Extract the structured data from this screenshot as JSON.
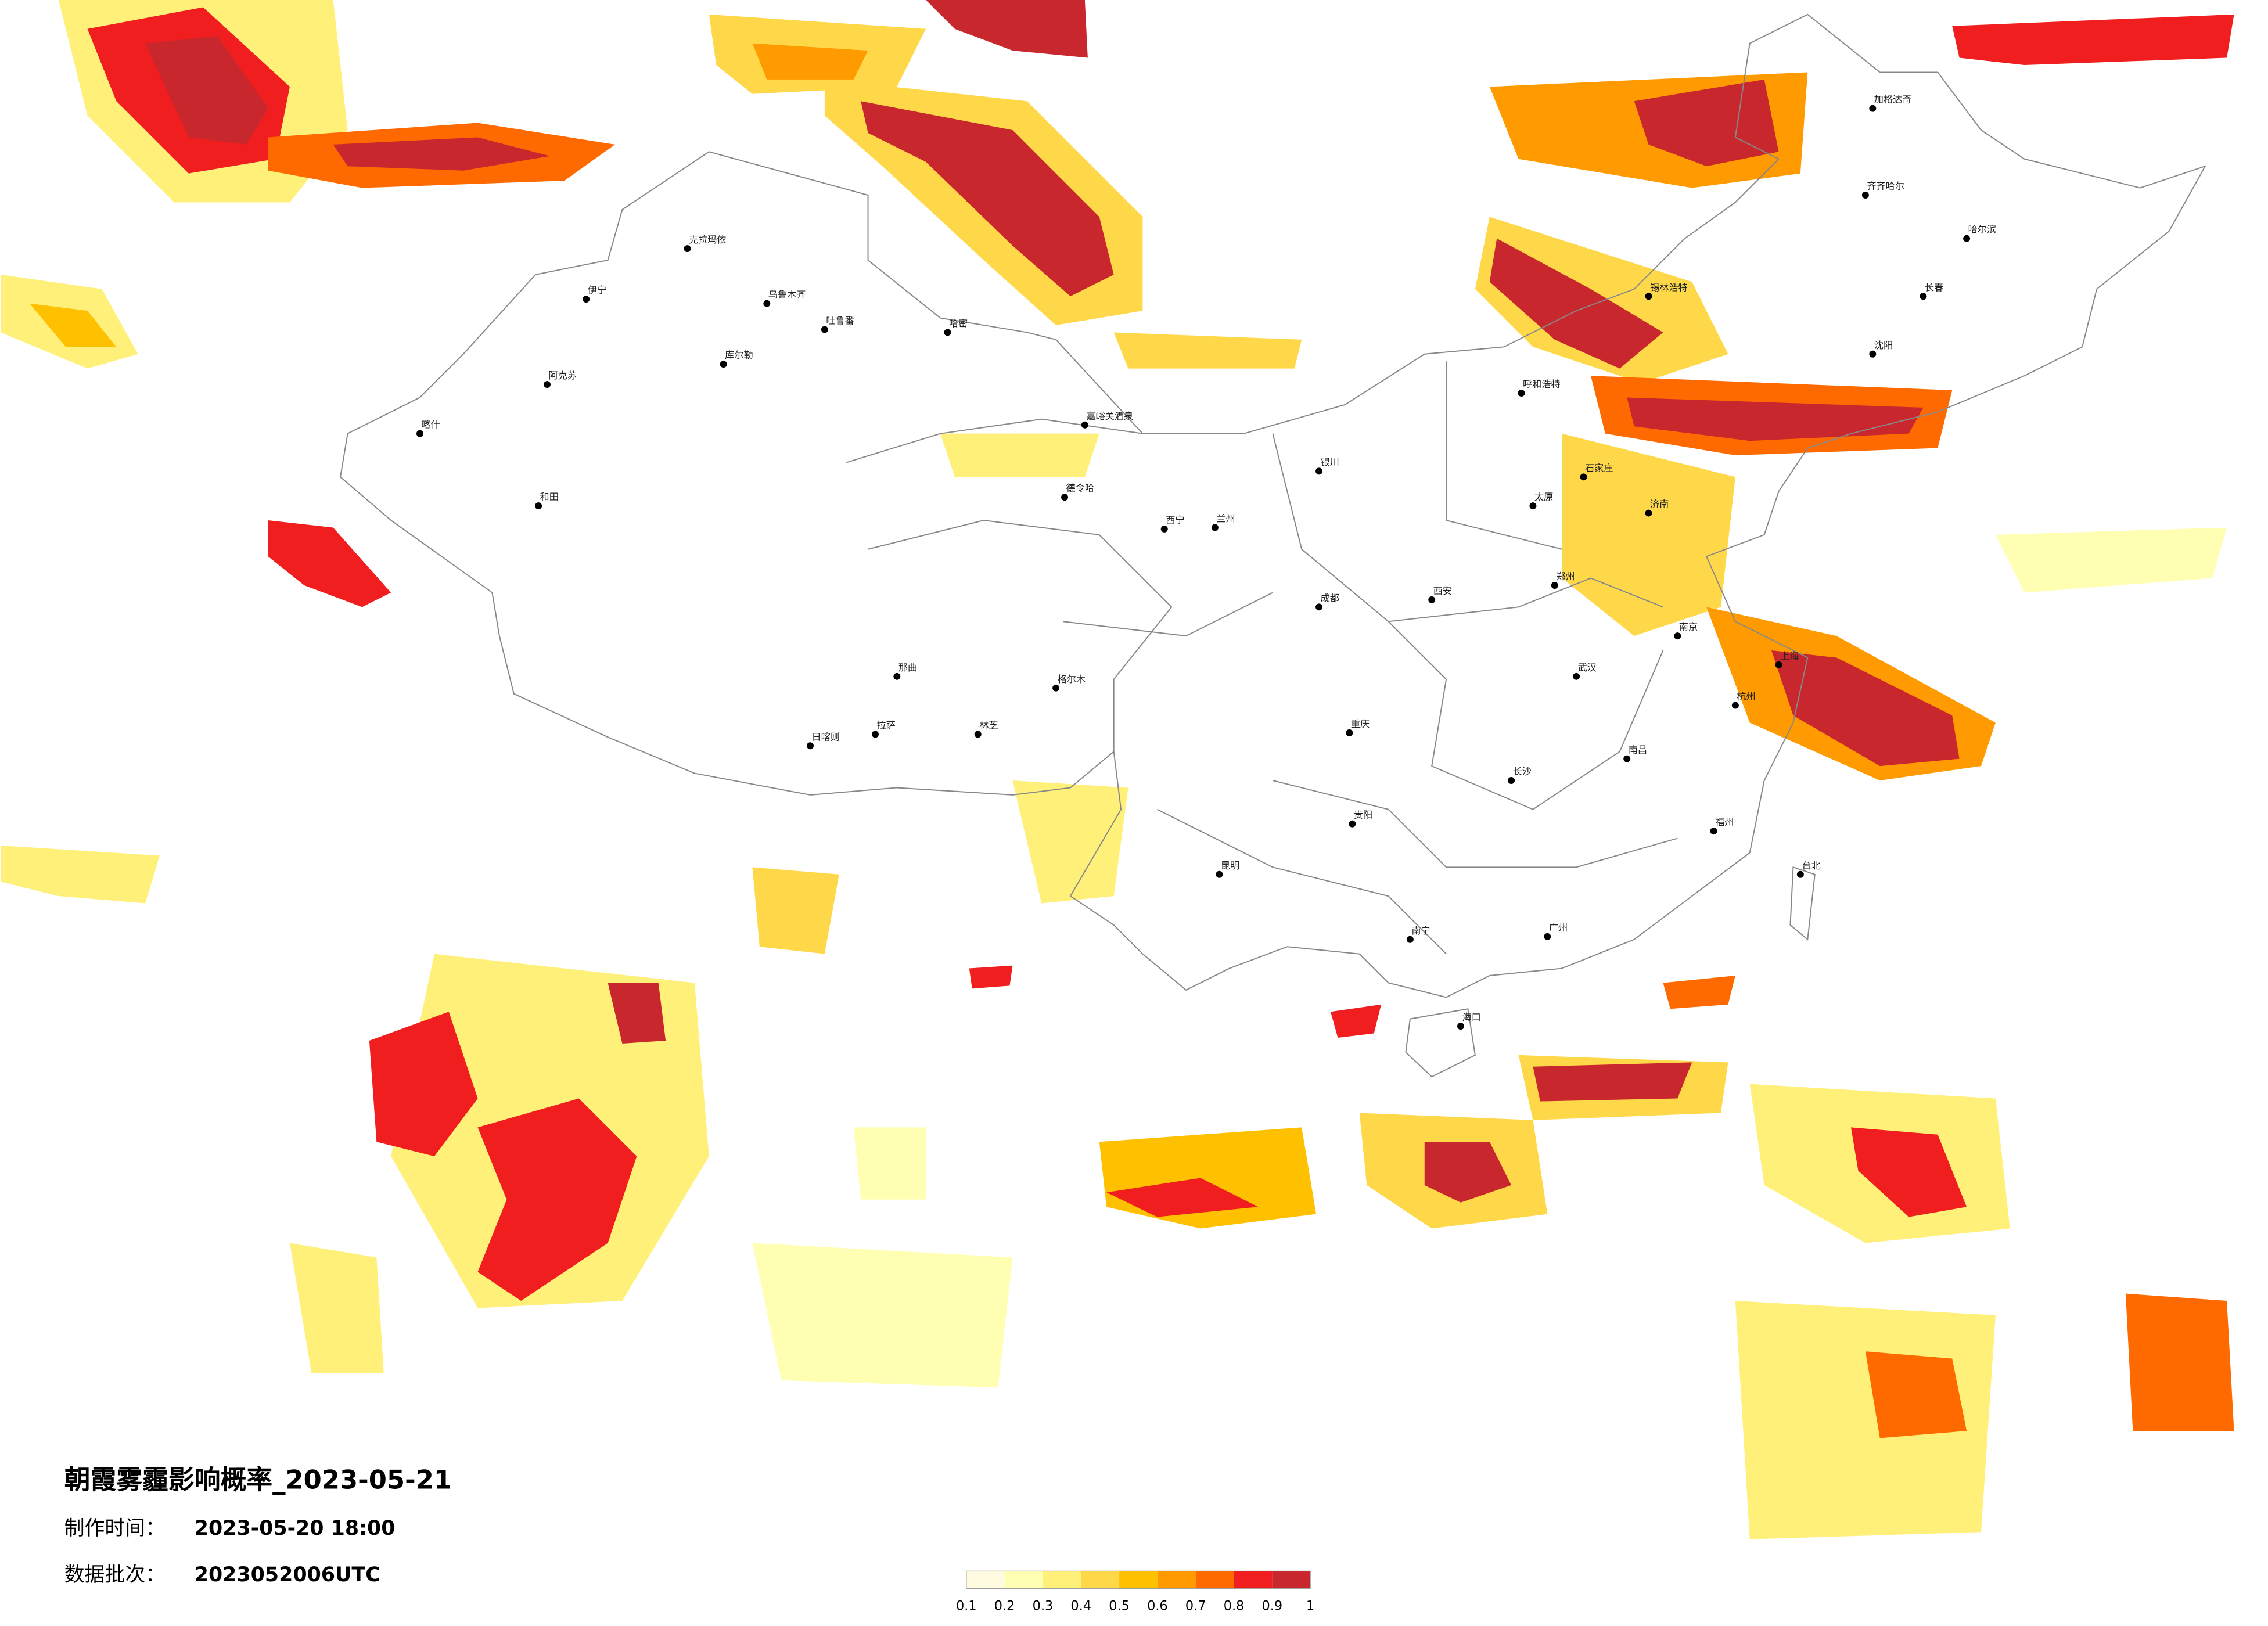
{
  "title": "朝霞雾霾影响概率_2023-05-21",
  "made_time": {
    "label": "制作时间：",
    "value": "2023-05-20 18:00"
  },
  "batch": {
    "label": "数据批次：",
    "value": "2023052006UTC"
  },
  "colorbar": {
    "ticks": [
      0.1,
      0.2,
      0.3,
      0.4,
      0.5,
      0.6,
      0.7,
      0.8,
      0.9,
      1
    ],
    "colors": [
      "#fffbe0",
      "#ffffb4",
      "#fff07a",
      "#ffd84a",
      "#ffc000",
      "#ff9a00",
      "#ff6a00",
      "#f01e1e",
      "#c8282d"
    ]
  },
  "cities": [
    "克拉玛依",
    "乌鲁木齐",
    "吐鲁番",
    "伊宁",
    "阿克苏",
    "喀什",
    "和田",
    "哈密",
    "库尔勒",
    "嘉峪关酒泉",
    "德令哈",
    "格尔木",
    "那曲",
    "拉萨",
    "日喀则",
    "林芝",
    "呼和浩特",
    "银川",
    "兰州",
    "西宁",
    "成都",
    "重庆",
    "贵阳",
    "昆明",
    "南宁",
    "广州",
    "长沙",
    "武汉",
    "南京",
    "上海",
    "杭州",
    "福州",
    "济南",
    "石家庄",
    "太原",
    "郑州",
    "西安",
    "哈尔滨",
    "长春",
    "沈阳",
    "海口",
    "台北",
    "齐齐哈尔",
    "加格达奇",
    "锡林浩特",
    "南昌"
  ]
}
